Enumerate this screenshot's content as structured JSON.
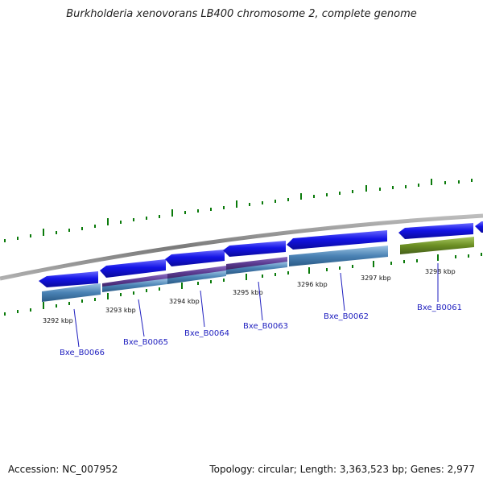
{
  "title": "Burkholderia xenovorans LB400 chromosome 2, complete genome",
  "footer": {
    "accession": "Accession: NC_007952",
    "summary": "Topology: circular; Length: 3,363,523 bp; Genes: 2,977"
  },
  "kbp_labels": [
    "3292 kbp",
    "3293 kbp",
    "3294 kbp",
    "3295 kbp",
    "3296 kbp",
    "3297 kbp",
    "3298 kbp"
  ],
  "genes": [
    "Bxe_B0066",
    "Bxe_B0065",
    "Bxe_B0064",
    "Bxe_B0063",
    "Bxe_B0062",
    "Bxe_B0061"
  ],
  "colors": {
    "backbone": "#8c8c8c",
    "gene_arrow": "#1414e6",
    "cds_steel": "#4a82b4",
    "cds_purple": "#5a3a90",
    "cds_olive": "#6b8e23",
    "tick": "#0a7a0a",
    "label": "#1f1fbf"
  }
}
